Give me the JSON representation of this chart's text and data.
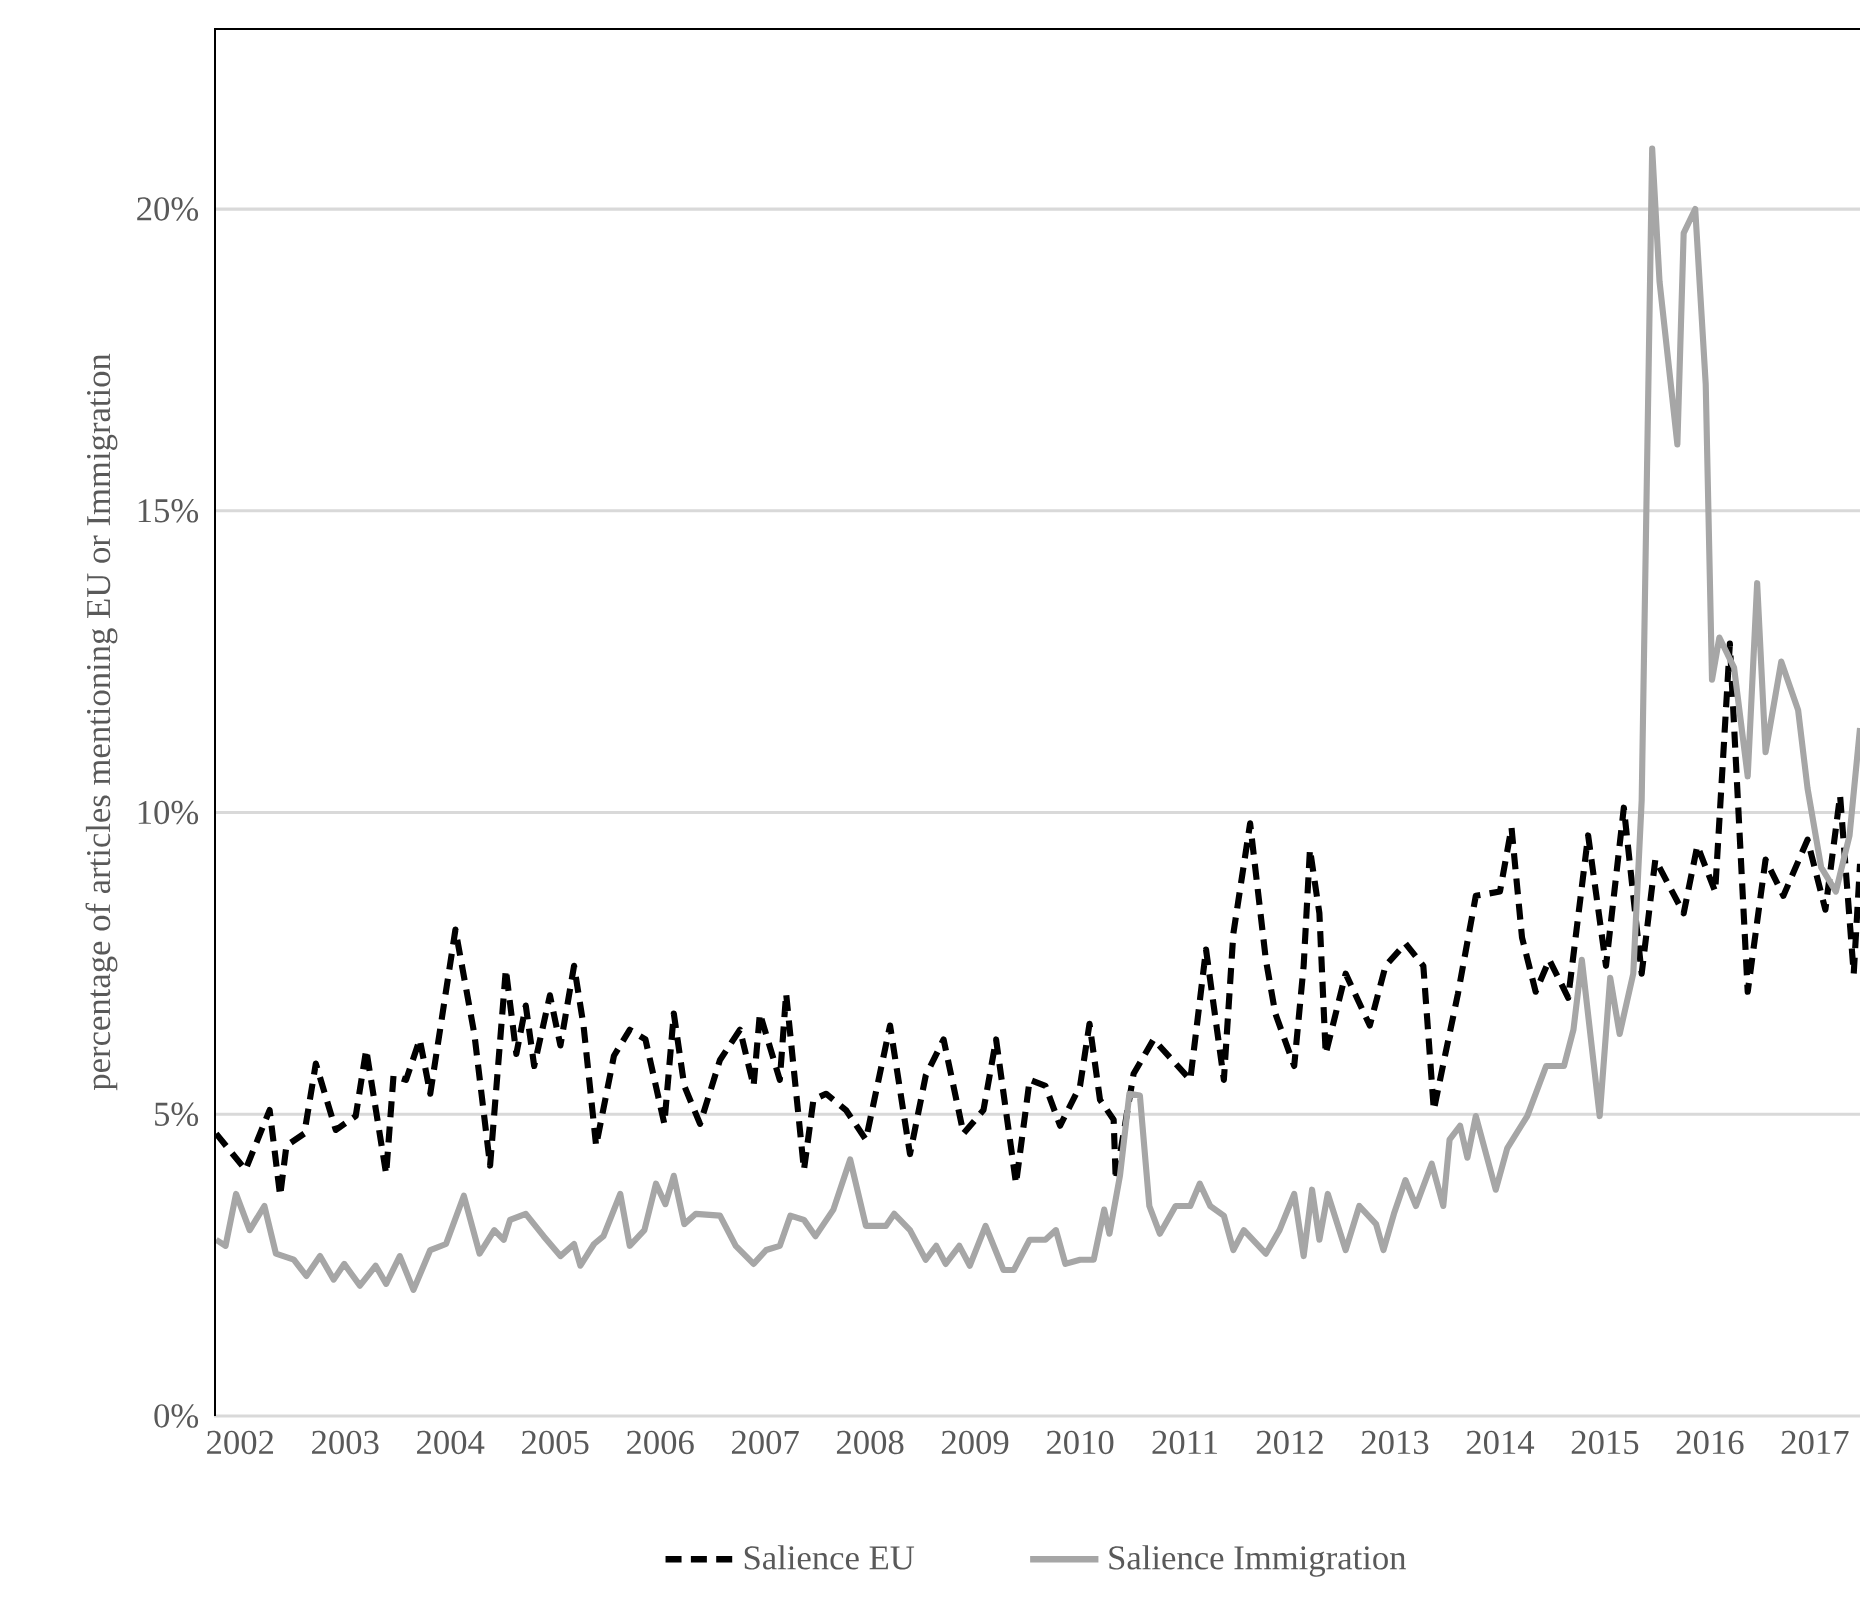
{
  "chart_data": {
    "type": "line",
    "ylabel": "percentage of articles mentioning EU or Immigration",
    "xlim": [
      2002,
      2017.68
    ],
    "ylim": [
      0,
      23
    ],
    "xticks": [
      {
        "value": 2002.25,
        "label": "2002"
      },
      {
        "value": 2003.25,
        "label": "2003"
      },
      {
        "value": 2004.25,
        "label": "2004"
      },
      {
        "value": 2005.25,
        "label": "2005"
      },
      {
        "value": 2006.25,
        "label": "2006"
      },
      {
        "value": 2007.25,
        "label": "2007"
      },
      {
        "value": 2008.25,
        "label": "2008"
      },
      {
        "value": 2009.25,
        "label": "2009"
      },
      {
        "value": 2010.25,
        "label": "2010"
      },
      {
        "value": 2011.25,
        "label": "2011"
      },
      {
        "value": 2012.25,
        "label": "2012"
      },
      {
        "value": 2013.25,
        "label": "2013"
      },
      {
        "value": 2014.25,
        "label": "2014"
      },
      {
        "value": 2015.25,
        "label": "2015"
      },
      {
        "value": 2016.25,
        "label": "2016"
      },
      {
        "value": 2017.25,
        "label": "2017"
      }
    ],
    "yticks": [
      {
        "value": 0,
        "label": "0%"
      },
      {
        "value": 5,
        "label": "5%"
      },
      {
        "value": 10,
        "label": "10%"
      },
      {
        "value": 15,
        "label": "15%"
      },
      {
        "value": 20,
        "label": "20%"
      }
    ],
    "grid": "y",
    "legend": "bottom",
    "marker": "none",
    "series": [
      {
        "name": "Salience EU",
        "color": "#000000",
        "line_style": "dashed",
        "x": [
          2002.02,
          2002.3,
          2002.53,
          2002.63,
          2002.69,
          2002.86,
          2002.97,
          2003.16,
          2003.35,
          2003.45,
          2003.64,
          2003.71,
          2003.83,
          2003.96,
          2004.06,
          2004.3,
          2004.48,
          2004.63,
          2004.78,
          2004.88,
          2004.97,
          2005.05,
          2005.2,
          2005.3,
          2005.43,
          2005.52,
          2005.64,
          2005.81,
          2005.96,
          2006.11,
          2006.29,
          2006.38,
          2006.48,
          2006.63,
          2006.82,
          2007.01,
          2007.14,
          2007.2,
          2007.39,
          2007.45,
          2007.62,
          2007.71,
          2007.83,
          2008.02,
          2008.21,
          2008.44,
          2008.63,
          2008.78,
          2008.95,
          2009.14,
          2009.33,
          2009.45,
          2009.64,
          2009.77,
          2009.92,
          2010.06,
          2010.25,
          2010.34,
          2010.44,
          2010.57,
          2010.59,
          2010.76,
          2010.95,
          2011.16,
          2011.3,
          2011.45,
          2011.62,
          2011.71,
          2011.87,
          2012.02,
          2012.11,
          2012.29,
          2012.38,
          2012.44,
          2012.53,
          2012.59,
          2012.78,
          2013.01,
          2013.16,
          2013.35,
          2013.52,
          2013.62,
          2013.73,
          2013.85,
          2014.02,
          2014.25,
          2014.36,
          2014.46,
          2014.59,
          2014.72,
          2014.9,
          2015.09,
          2015.26,
          2015.43,
          2015.6,
          2015.73,
          2016.0,
          2016.13,
          2016.3,
          2016.44,
          2016.61,
          2016.78,
          2016.95,
          2017.18,
          2017.35,
          2017.49,
          2017.62,
          2017.68
        ],
        "values": [
          4.68,
          4.08,
          5.07,
          3.65,
          4.48,
          4.68,
          5.84,
          4.74,
          4.97,
          6.07,
          4.01,
          5.64,
          5.57,
          6.24,
          5.34,
          8.06,
          6.33,
          4.15,
          7.4,
          6.0,
          6.8,
          5.8,
          6.97,
          6.14,
          7.46,
          6.47,
          4.48,
          5.97,
          6.4,
          6.24,
          4.84,
          6.67,
          5.47,
          4.84,
          5.9,
          6.4,
          5.47,
          6.67,
          5.57,
          7.0,
          4.08,
          5.24,
          5.34,
          5.07,
          4.58,
          6.47,
          4.34,
          5.64,
          6.24,
          4.68,
          5.07,
          6.24,
          3.85,
          5.57,
          5.47,
          4.81,
          5.47,
          6.5,
          5.24,
          4.91,
          3.91,
          5.67,
          6.24,
          5.84,
          5.57,
          7.73,
          5.57,
          7.99,
          9.82,
          7.56,
          6.67,
          5.8,
          7.46,
          9.39,
          8.33,
          6.0,
          7.33,
          6.47,
          7.46,
          7.83,
          7.46,
          5.07,
          6.0,
          7.0,
          8.62,
          8.69,
          9.75,
          7.93,
          7.03,
          7.56,
          6.93,
          9.62,
          7.46,
          10.08,
          7.33,
          9.22,
          8.33,
          9.45,
          8.69,
          12.8,
          7.03,
          9.22,
          8.62,
          9.55,
          8.39,
          10.28,
          7.33,
          9.15
        ]
      },
      {
        "name": "Salience Immigration",
        "color": "#a6a6a6",
        "line_style": "solid",
        "x": [
          2002.02,
          2002.11,
          2002.21,
          2002.34,
          2002.48,
          2002.59,
          2002.76,
          2002.88,
          2003.01,
          2003.14,
          2003.24,
          2003.39,
          2003.54,
          2003.64,
          2003.77,
          2003.9,
          2004.06,
          2004.21,
          2004.38,
          2004.53,
          2004.67,
          2004.76,
          2004.82,
          2004.97,
          2005.14,
          2005.3,
          2005.43,
          2005.49,
          2005.62,
          2005.71,
          2005.87,
          2005.96,
          2006.1,
          2006.21,
          2006.3,
          2006.38,
          2006.48,
          2006.59,
          2006.82,
          2006.97,
          2007.14,
          2007.26,
          2007.39,
          2007.49,
          2007.62,
          2007.73,
          2007.9,
          2008.06,
          2008.21,
          2008.4,
          2008.48,
          2008.63,
          2008.78,
          2008.88,
          2008.97,
          2009.1,
          2009.2,
          2009.35,
          2009.52,
          2009.62,
          2009.77,
          2009.92,
          2010.02,
          2010.11,
          2010.25,
          2010.38,
          2010.48,
          2010.53,
          2010.63,
          2010.72,
          2010.82,
          2010.91,
          2011.01,
          2011.16,
          2011.3,
          2011.39,
          2011.49,
          2011.62,
          2011.71,
          2011.81,
          2012.02,
          2012.15,
          2012.29,
          2012.38,
          2012.46,
          2012.53,
          2012.61,
          2012.78,
          2012.91,
          2013.07,
          2013.14,
          2013.24,
          2013.35,
          2013.45,
          2013.6,
          2013.71,
          2013.77,
          2013.87,
          2013.94,
          2014.02,
          2014.21,
          2014.32,
          2014.51,
          2014.69,
          2014.86,
          2014.95,
          2015.03,
          2015.2,
          2015.3,
          2015.39,
          2015.52,
          2015.6,
          2015.7,
          2015.77,
          2015.94,
          2016.0,
          2016.11,
          2016.21,
          2016.27,
          2016.34,
          2016.48,
          2016.61,
          2016.7,
          2016.78,
          2016.93,
          2017.09,
          2017.18,
          2017.31,
          2017.45,
          2017.58,
          2017.68
        ],
        "values": [
          2.92,
          2.82,
          3.68,
          3.08,
          3.48,
          2.69,
          2.59,
          2.32,
          2.65,
          2.26,
          2.52,
          2.16,
          2.49,
          2.19,
          2.65,
          2.09,
          2.75,
          2.85,
          3.65,
          2.69,
          3.08,
          2.92,
          3.25,
          3.35,
          2.98,
          2.65,
          2.85,
          2.49,
          2.85,
          2.98,
          3.68,
          2.82,
          3.08,
          3.85,
          3.51,
          3.98,
          3.18,
          3.35,
          3.32,
          2.82,
          2.52,
          2.75,
          2.82,
          3.32,
          3.25,
          2.98,
          3.42,
          4.25,
          3.15,
          3.15,
          3.35,
          3.08,
          2.59,
          2.82,
          2.52,
          2.82,
          2.49,
          3.15,
          2.42,
          2.42,
          2.92,
          2.92,
          3.08,
          2.52,
          2.59,
          2.59,
          3.42,
          3.02,
          3.98,
          5.34,
          5.31,
          3.48,
          3.02,
          3.48,
          3.48,
          3.85,
          3.48,
          3.32,
          2.75,
          3.08,
          2.69,
          3.08,
          3.68,
          2.65,
          3.75,
          2.92,
          3.68,
          2.75,
          3.48,
          3.18,
          2.75,
          3.35,
          3.91,
          3.48,
          4.18,
          3.48,
          4.58,
          4.81,
          4.28,
          4.97,
          3.75,
          4.44,
          4.97,
          5.8,
          5.8,
          6.4,
          7.56,
          4.97,
          7.26,
          6.33,
          7.33,
          10.2,
          21.0,
          18.8,
          16.1,
          19.6,
          20.0,
          17.1,
          12.2,
          12.9,
          12.4,
          10.6,
          13.8,
          11.0,
          12.5,
          11.7,
          10.4,
          9.09,
          8.69,
          9.62,
          11.4
        ]
      }
    ]
  }
}
